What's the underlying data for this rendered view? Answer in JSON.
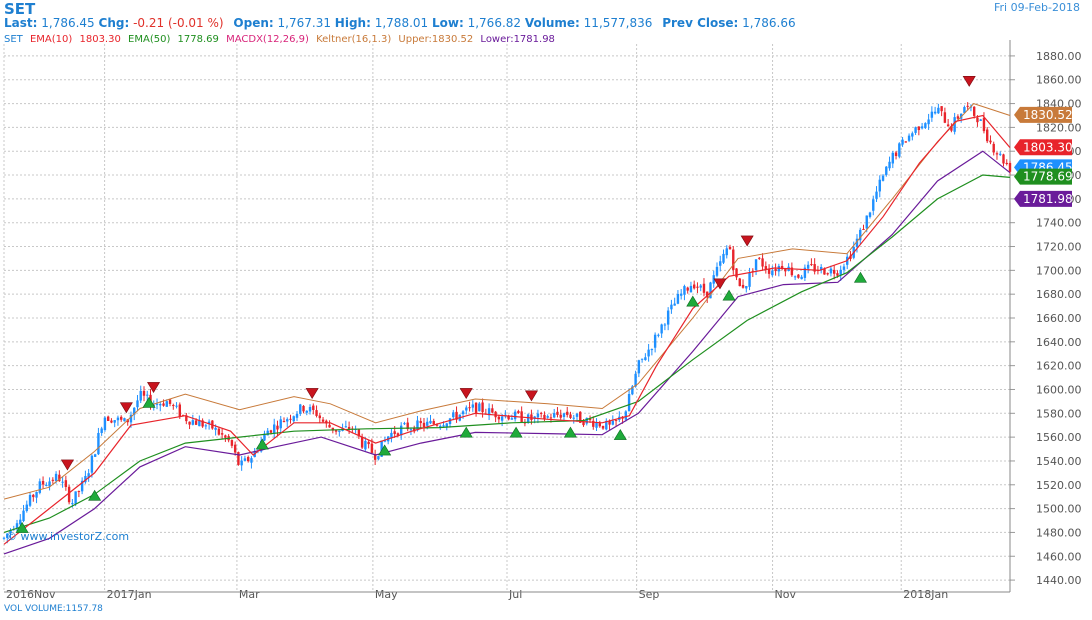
{
  "header": {
    "symbol": "SET",
    "date": "Fri 09-Feb-2018",
    "last_label": "Last:",
    "last": "1,786.45",
    "chg_label": "Chg:",
    "chg": "-0.21 (-0.01 %)",
    "open_label": "Open:",
    "open": "1,767.31",
    "high_label": "High:",
    "high": "1,788.01",
    "low_label": "Low:",
    "low": "1,766.82",
    "volume_label": "Volume:",
    "volume": "11,577,836",
    "prev_close_label": "Prev Close:",
    "prev_close": "1,786.66"
  },
  "indicators": {
    "set": "SET",
    "ema10": "EMA(10)",
    "ema10_val": "1803.30",
    "ema50": "EMA(50)",
    "ema50_val": "1778.69",
    "macdx": "MACDX(12,26,9)",
    "keltner": "Keltner(16,1.3)",
    "upper": "Upper:1830.52",
    "lower": "Lower:1781.98"
  },
  "volume_footer": "VOL  VOLUME:1157.78",
  "watermark": "© www.investorZ.com",
  "colors": {
    "up": "#1e90ff",
    "down": "#e8242b",
    "ema10": "#e8242b",
    "ema50": "#1f8f1f",
    "keltner_upper": "#c87a3a",
    "keltner_lower": "#6a1b9a",
    "grid": "#c8c8c8",
    "axis_text": "#555555",
    "buy_signal": "#1faa3a",
    "sell_signal": "#c8141e"
  },
  "chart_data": {
    "type": "candlestick",
    "ylim": [
      1430,
      1890
    ],
    "y_ticks": [
      1440,
      1460,
      1480,
      1500,
      1520,
      1540,
      1560,
      1580,
      1600,
      1620,
      1640,
      1660,
      1680,
      1700,
      1720,
      1740,
      1760,
      1780,
      1800,
      1820,
      1840,
      1860,
      1880
    ],
    "x_ticks": [
      {
        "label": "2016Nov",
        "t": 0
      },
      {
        "label": "2017Jan",
        "t": 0.111
      },
      {
        "label": "Mar",
        "t": 0.257
      },
      {
        "label": "May",
        "t": 0.407
      },
      {
        "label": "Jul",
        "t": 0.555
      },
      {
        "label": "Sep",
        "t": 0.698
      },
      {
        "label": "Nov",
        "t": 0.848
      },
      {
        "label": "2018Jan",
        "t": 0.99
      }
    ],
    "price_path": [
      [
        0,
        1475
      ],
      [
        0.02,
        1497
      ],
      [
        0.04,
        1520
      ],
      [
        0.06,
        1527
      ],
      [
        0.075,
        1505
      ],
      [
        0.09,
        1525
      ],
      [
        0.1,
        1548
      ],
      [
        0.11,
        1578
      ],
      [
        0.135,
        1572
      ],
      [
        0.15,
        1595
      ],
      [
        0.165,
        1588
      ],
      [
        0.18,
        1590
      ],
      [
        0.2,
        1576
      ],
      [
        0.215,
        1572
      ],
      [
        0.23,
        1568
      ],
      [
        0.25,
        1555
      ],
      [
        0.26,
        1535
      ],
      [
        0.275,
        1545
      ],
      [
        0.29,
        1565
      ],
      [
        0.31,
        1575
      ],
      [
        0.33,
        1585
      ],
      [
        0.345,
        1580
      ],
      [
        0.355,
        1570
      ],
      [
        0.37,
        1565
      ],
      [
        0.385,
        1568
      ],
      [
        0.395,
        1555
      ],
      [
        0.41,
        1545
      ],
      [
        0.425,
        1562
      ],
      [
        0.44,
        1568
      ],
      [
        0.46,
        1570
      ],
      [
        0.48,
        1572
      ],
      [
        0.5,
        1578
      ],
      [
        0.52,
        1585
      ],
      [
        0.54,
        1580
      ],
      [
        0.56,
        1578
      ],
      [
        0.58,
        1575
      ],
      [
        0.6,
        1577
      ],
      [
        0.62,
        1580
      ],
      [
        0.635,
        1575
      ],
      [
        0.655,
        1572
      ],
      [
        0.67,
        1568
      ],
      [
        0.685,
        1580
      ],
      [
        0.7,
        1620
      ],
      [
        0.715,
        1638
      ],
      [
        0.73,
        1660
      ],
      [
        0.745,
        1678
      ],
      [
        0.76,
        1690
      ],
      [
        0.775,
        1680
      ],
      [
        0.79,
        1705
      ],
      [
        0.8,
        1722
      ],
      [
        0.81,
        1685
      ],
      [
        0.82,
        1690
      ],
      [
        0.83,
        1710
      ],
      [
        0.845,
        1700
      ],
      [
        0.86,
        1705
      ],
      [
        0.875,
        1695
      ],
      [
        0.89,
        1702
      ],
      [
        0.905,
        1700
      ],
      [
        0.92,
        1700
      ],
      [
        0.935,
        1715
      ],
      [
        0.95,
        1740
      ],
      [
        0.965,
        1770
      ],
      [
        0.98,
        1795
      ],
      [
        0.995,
        1810
      ],
      [
        1.01,
        1822
      ],
      [
        1.03,
        1835
      ],
      [
        1.045,
        1820
      ],
      [
        1.06,
        1838
      ],
      [
        1.075,
        1828
      ],
      [
        1.09,
        1805
      ],
      [
        1.1,
        1795
      ],
      [
        1.11,
        1786
      ]
    ],
    "ema10": [
      [
        0,
        1470
      ],
      [
        0.05,
        1500
      ],
      [
        0.1,
        1530
      ],
      [
        0.14,
        1570
      ],
      [
        0.2,
        1578
      ],
      [
        0.25,
        1565
      ],
      [
        0.275,
        1545
      ],
      [
        0.32,
        1572
      ],
      [
        0.36,
        1572
      ],
      [
        0.41,
        1555
      ],
      [
        0.45,
        1565
      ],
      [
        0.52,
        1580
      ],
      [
        0.6,
        1575
      ],
      [
        0.66,
        1572
      ],
      [
        0.69,
        1578
      ],
      [
        0.72,
        1620
      ],
      [
        0.76,
        1668
      ],
      [
        0.8,
        1695
      ],
      [
        0.85,
        1702
      ],
      [
        0.9,
        1700
      ],
      [
        0.93,
        1708
      ],
      [
        0.97,
        1745
      ],
      [
        1.01,
        1790
      ],
      [
        1.05,
        1825
      ],
      [
        1.08,
        1830
      ],
      [
        1.11,
        1803
      ]
    ],
    "ema50": [
      [
        0,
        1480
      ],
      [
        0.05,
        1492
      ],
      [
        0.1,
        1512
      ],
      [
        0.15,
        1540
      ],
      [
        0.2,
        1555
      ],
      [
        0.26,
        1560
      ],
      [
        0.32,
        1565
      ],
      [
        0.4,
        1567
      ],
      [
        0.48,
        1568
      ],
      [
        0.56,
        1572
      ],
      [
        0.64,
        1574
      ],
      [
        0.7,
        1590
      ],
      [
        0.76,
        1625
      ],
      [
        0.82,
        1658
      ],
      [
        0.88,
        1682
      ],
      [
        0.93,
        1698
      ],
      [
        0.98,
        1728
      ],
      [
        1.03,
        1760
      ],
      [
        1.08,
        1780
      ],
      [
        1.11,
        1778
      ]
    ],
    "keltner_upper": [
      [
        0,
        1508
      ],
      [
        0.05,
        1518
      ],
      [
        0.1,
        1548
      ],
      [
        0.15,
        1584
      ],
      [
        0.2,
        1596
      ],
      [
        0.26,
        1583
      ],
      [
        0.32,
        1594
      ],
      [
        0.36,
        1588
      ],
      [
        0.41,
        1572
      ],
      [
        0.46,
        1582
      ],
      [
        0.52,
        1592
      ],
      [
        0.6,
        1588
      ],
      [
        0.66,
        1584
      ],
      [
        0.7,
        1605
      ],
      [
        0.76,
        1660
      ],
      [
        0.81,
        1710
      ],
      [
        0.87,
        1718
      ],
      [
        0.93,
        1714
      ],
      [
        0.98,
        1760
      ],
      [
        1.03,
        1808
      ],
      [
        1.07,
        1840
      ],
      [
        1.11,
        1830
      ]
    ],
    "keltner_lower": [
      [
        0,
        1462
      ],
      [
        0.05,
        1475
      ],
      [
        0.1,
        1500
      ],
      [
        0.15,
        1535
      ],
      [
        0.2,
        1552
      ],
      [
        0.26,
        1545
      ],
      [
        0.3,
        1552
      ],
      [
        0.35,
        1560
      ],
      [
        0.41,
        1545
      ],
      [
        0.46,
        1555
      ],
      [
        0.52,
        1564
      ],
      [
        0.6,
        1563
      ],
      [
        0.66,
        1562
      ],
      [
        0.7,
        1580
      ],
      [
        0.76,
        1632
      ],
      [
        0.81,
        1678
      ],
      [
        0.86,
        1688
      ],
      [
        0.92,
        1690
      ],
      [
        0.98,
        1730
      ],
      [
        1.03,
        1775
      ],
      [
        1.08,
        1800
      ],
      [
        1.11,
        1782
      ]
    ],
    "buy_signals": [
      [
        0.02,
        1490
      ],
      [
        0.1,
        1517
      ],
      [
        0.16,
        1595
      ],
      [
        0.285,
        1560
      ],
      [
        0.42,
        1555
      ],
      [
        0.51,
        1570
      ],
      [
        0.565,
        1570
      ],
      [
        0.625,
        1570
      ],
      [
        0.68,
        1568
      ],
      [
        0.76,
        1680
      ],
      [
        0.8,
        1685
      ],
      [
        0.945,
        1700
      ]
    ],
    "sell_signals": [
      [
        0.07,
        1530
      ],
      [
        0.135,
        1578
      ],
      [
        0.165,
        1595
      ],
      [
        0.34,
        1590
      ],
      [
        0.51,
        1590
      ],
      [
        0.582,
        1588
      ],
      [
        0.79,
        1682
      ],
      [
        0.82,
        1718
      ],
      [
        1.065,
        1852
      ]
    ],
    "labels": [
      {
        "text": "1830.52",
        "value": 1830.52,
        "color": "#c87a3a"
      },
      {
        "text": "1803.30",
        "value": 1803.3,
        "color": "#e8242b"
      },
      {
        "text": "1786.45",
        "value": 1786.45,
        "color": "#1e90ff"
      },
      {
        "text": "1778.69",
        "value": 1778.69,
        "color": "#1f8f1f"
      },
      {
        "text": "1781.98",
        "value": 1781.98,
        "color": "#6a1b9a"
      }
    ]
  }
}
